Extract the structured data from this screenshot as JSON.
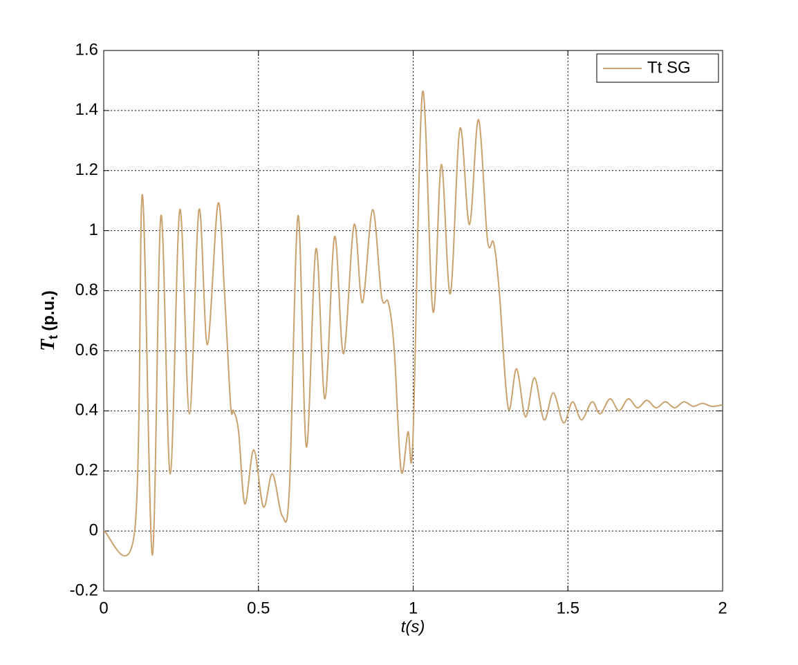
{
  "chart_data": {
    "type": "line",
    "xlabel": "t(s)",
    "ylabel": {
      "symbol": "T",
      "subscript": "t",
      "unit": "(p.u.)"
    },
    "x": [
      0,
      0.1,
      0.125,
      0.157,
      0.185,
      0.215,
      0.246,
      0.277,
      0.308,
      0.335,
      0.369,
      0.39,
      0.41,
      0.42,
      0.436,
      0.456,
      0.485,
      0.516,
      0.545,
      0.577,
      0.6,
      0.628,
      0.655,
      0.686,
      0.715,
      0.746,
      0.775,
      0.809,
      0.836,
      0.869,
      0.898,
      0.92,
      0.939,
      0.961,
      0.983,
      0.999,
      1.03,
      1.064,
      1.091,
      1.12,
      1.151,
      1.182,
      1.211,
      1.24,
      1.26,
      1.278,
      1.307,
      1.334,
      1.363,
      1.392,
      1.423,
      1.453,
      1.486,
      1.515,
      1.544,
      1.578,
      1.604,
      1.636,
      1.665,
      1.695,
      1.725,
      1.755,
      1.785,
      1.815,
      1.845,
      1.875,
      1.905,
      1.935,
      1.965,
      2.0
    ],
    "series": [
      {
        "name": "Tt SG",
        "color": "#c9a26e",
        "values": [
          0,
          0,
          1.12,
          -0.08,
          1.05,
          0.19,
          1.07,
          0.39,
          1.07,
          0.62,
          1.09,
          0.8,
          0.42,
          0.4,
          0.33,
          0.09,
          0.27,
          0.08,
          0.19,
          0.05,
          0.14,
          1.05,
          0.28,
          0.94,
          0.44,
          0.98,
          0.59,
          1.02,
          0.76,
          1.07,
          0.78,
          0.76,
          0.6,
          0.2,
          0.33,
          0.3,
          1.46,
          0.73,
          1.22,
          0.79,
          1.34,
          1.02,
          1.37,
          0.97,
          0.96,
          0.8,
          0.41,
          0.54,
          0.38,
          0.51,
          0.37,
          0.46,
          0.36,
          0.43,
          0.37,
          0.43,
          0.39,
          0.44,
          0.4,
          0.44,
          0.41,
          0.435,
          0.41,
          0.43,
          0.41,
          0.43,
          0.415,
          0.425,
          0.415,
          0.42
        ]
      }
    ],
    "xlim": [
      0,
      2
    ],
    "xticks": [
      0,
      0.5,
      1,
      1.5,
      2
    ],
    "ylim": [
      -0.2,
      1.6
    ],
    "yticks": [
      -0.2,
      0,
      0.2,
      0.4,
      0.6,
      0.8,
      1,
      1.2,
      1.4,
      1.6
    ],
    "grid": true,
    "legend": "upper right"
  }
}
